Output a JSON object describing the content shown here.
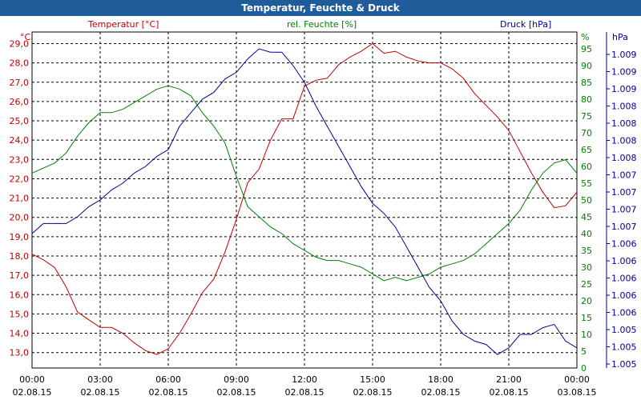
{
  "window": {
    "title": "Temperatur, Feuchte & Druck"
  },
  "colors": {
    "temperature": "#c00000",
    "humidity": "#008000",
    "pressure": "#000090",
    "title_bar": "#1f5c99",
    "grid": "#000000"
  },
  "chart_data": {
    "type": "line",
    "title": "Temperatur, Feuchte & Druck",
    "grid": true,
    "x": {
      "ticks": [
        {
          "time": "00:00",
          "date": "02.08.15"
        },
        {
          "time": "03:00",
          "date": "02.08.15"
        },
        {
          "time": "06:00",
          "date": "02.08.15"
        },
        {
          "time": "09:00",
          "date": "02.08.15"
        },
        {
          "time": "12:00",
          "date": "02.08.15"
        },
        {
          "time": "15:00",
          "date": "02.08.15"
        },
        {
          "time": "18:00",
          "date": "02.08.15"
        },
        {
          "time": "21:00",
          "date": "02.08.15"
        },
        {
          "time": "00:00",
          "date": "03.08.15"
        }
      ],
      "range_hours": [
        0,
        24
      ]
    },
    "axes": {
      "temperature": {
        "label": "Temperatur [°C]",
        "unit": "°C",
        "range": [
          12.2,
          29.6
        ],
        "tick_labels": [
          "13,0",
          "14,0",
          "15,0",
          "16,0",
          "17,0",
          "18,0",
          "19,0",
          "20,0",
          "21,0",
          "22,0",
          "23,0",
          "24,0",
          "25,0",
          "26,0",
          "27,0",
          "28,0",
          "29,0"
        ],
        "tick_values": [
          13,
          14,
          15,
          16,
          17,
          18,
          19,
          20,
          21,
          22,
          23,
          24,
          25,
          26,
          27,
          28,
          29
        ]
      },
      "humidity": {
        "label": "rel. Feuchte [%]",
        "unit": "%",
        "range": [
          0,
          100
        ],
        "tick_labels": [
          "0",
          "5",
          "10",
          "15",
          "20",
          "25",
          "30",
          "35",
          "40",
          "45",
          "50",
          "55",
          "60",
          "65",
          "70",
          "75",
          "80",
          "85",
          "90",
          "95"
        ],
        "tick_values": [
          0,
          5,
          10,
          15,
          20,
          25,
          30,
          35,
          40,
          45,
          50,
          55,
          60,
          65,
          70,
          75,
          80,
          85,
          90,
          95
        ]
      },
      "pressure": {
        "label": "Druck [hPa]",
        "unit": "hPa",
        "tick_labels": [
          "1.005",
          "1.005",
          "1.005",
          "1.006",
          "1.006",
          "1.006",
          "1.006",
          "1.006",
          "1.007",
          "1.007",
          "1.007",
          "1.007",
          "1.008",
          "1.008",
          "1.008",
          "1.008",
          "1.009",
          "1.009",
          "1.009"
        ]
      }
    },
    "series": [
      {
        "name": "Temperatur [°C]",
        "axis": "temperature",
        "hours": [
          0,
          0.5,
          1,
          1.5,
          2,
          2.5,
          3,
          3.5,
          4,
          4.5,
          5,
          5.5,
          6,
          6.5,
          7,
          7.5,
          8,
          8.5,
          9,
          9.5,
          10,
          10.5,
          11,
          11.5,
          12,
          12.5,
          13,
          13.5,
          14,
          14.5,
          15,
          15.5,
          16,
          16.5,
          17,
          17.5,
          18,
          18.5,
          19,
          19.5,
          20,
          20.5,
          21,
          21.5,
          22,
          22.5,
          23,
          23.5,
          24
        ],
        "values": [
          18.1,
          17.8,
          17.4,
          16.4,
          15.1,
          14.7,
          14.3,
          14.3,
          14.0,
          13.5,
          13.1,
          12.9,
          13.2,
          14.0,
          15.0,
          16.1,
          16.8,
          18.2,
          19.9,
          21.8,
          22.5,
          24.0,
          25.1,
          25.1,
          26.8,
          27.1,
          27.2,
          27.9,
          28.3,
          28.6,
          29.0,
          28.5,
          28.6,
          28.3,
          28.1,
          28.0,
          28.0,
          27.7,
          27.2,
          26.4,
          25.8,
          25.2,
          24.5,
          23.4,
          22.3,
          21.3,
          20.5,
          20.6,
          21.3
        ]
      },
      {
        "name": "rel. Feuchte [%]",
        "axis": "humidity",
        "hours": [
          0,
          0.5,
          1,
          1.5,
          2,
          2.5,
          3,
          3.5,
          4,
          4.5,
          5,
          5.5,
          6,
          6.5,
          7,
          7.5,
          8,
          8.5,
          9,
          9.5,
          10,
          10.5,
          11,
          11.5,
          12,
          12.5,
          13,
          13.5,
          14,
          14.5,
          15,
          15.5,
          16,
          16.5,
          17,
          17.5,
          18,
          18.5,
          19,
          19.5,
          20,
          20.5,
          21,
          21.5,
          22,
          22.5,
          23,
          23.5,
          24
        ],
        "values": [
          58,
          59.5,
          61,
          64,
          69,
          73,
          76,
          76,
          77,
          79,
          81,
          83,
          84,
          83,
          81,
          76,
          72,
          67,
          57,
          48,
          45,
          42,
          40,
          37,
          35,
          33,
          32,
          32,
          31,
          30,
          28,
          26,
          27,
          26,
          27,
          28,
          30,
          31,
          32,
          34,
          37,
          40,
          43,
          47,
          53,
          58,
          61,
          62,
          58
        ]
      },
      {
        "name": "Druck [hPa]",
        "axis": "pressure",
        "unit_note": "plotted on the right pressure scale; positions expressed as fraction of axis height (0 = bottom, 1 = top)",
        "hours": [
          0,
          0.5,
          1,
          1.5,
          2,
          2.5,
          3,
          3.5,
          4,
          4.5,
          5,
          5.5,
          6,
          6.5,
          7,
          7.5,
          8,
          8.5,
          9,
          9.5,
          10,
          10.5,
          11,
          11.5,
          12,
          12.5,
          13,
          13.5,
          14,
          14.5,
          15,
          15.5,
          16,
          16.5,
          17,
          17.5,
          18,
          18.5,
          19,
          19.5,
          20,
          20.5,
          21,
          21.5,
          22,
          22.5,
          23,
          23.5,
          24
        ],
        "values": [
          0.4,
          0.43,
          0.43,
          0.43,
          0.45,
          0.48,
          0.5,
          0.53,
          0.55,
          0.58,
          0.6,
          0.63,
          0.65,
          0.72,
          0.76,
          0.8,
          0.82,
          0.86,
          0.88,
          0.92,
          0.95,
          0.94,
          0.94,
          0.9,
          0.85,
          0.78,
          0.72,
          0.66,
          0.6,
          0.54,
          0.49,
          0.46,
          0.42,
          0.36,
          0.3,
          0.24,
          0.2,
          0.14,
          0.1,
          0.08,
          0.07,
          0.04,
          0.06,
          0.1,
          0.1,
          0.12,
          0.13,
          0.08,
          0.06
        ]
      }
    ]
  }
}
